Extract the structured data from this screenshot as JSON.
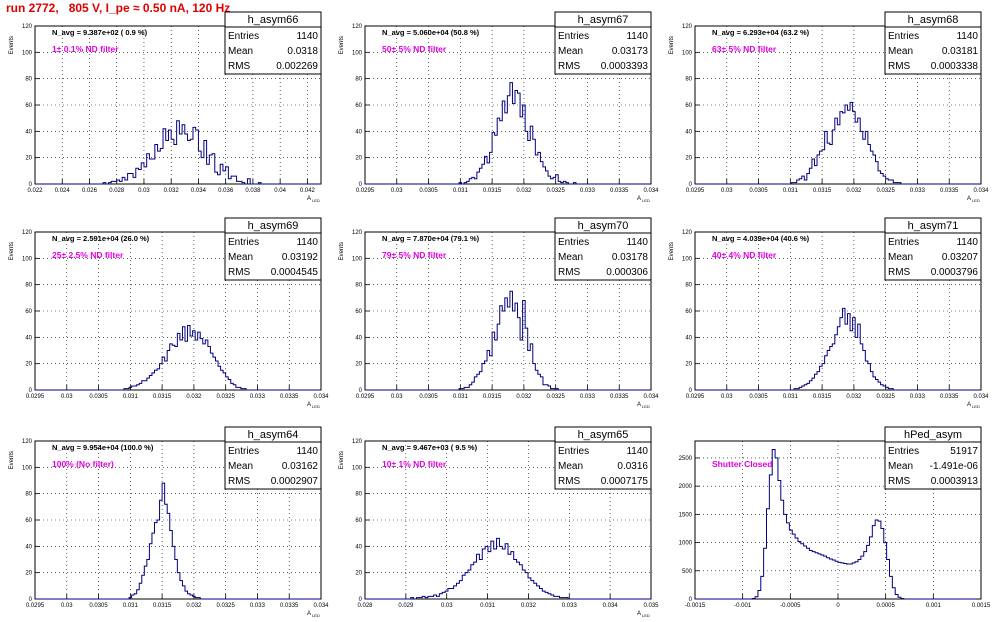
{
  "page": {
    "title": "run 2772,   805 V, I_pe ≈ 0.50 nA, 120 Hz"
  },
  "labels": {
    "entries": "Entries",
    "mean": "Mean",
    "rms": "RMS"
  },
  "colors": {
    "title": "#e00000",
    "annotation": "#e000e0",
    "histogram": "#000080",
    "grid": "#000000"
  },
  "chart_data": [
    {
      "name": "h_asym66",
      "type": "histogram",
      "nav": "N_avg = 9.387e+02 ( 0.9 %)",
      "filter": "1± 0.1% ND filter",
      "stats": {
        "entries": "1140",
        "mean": "0.0318",
        "rms": "0.002269"
      },
      "xlabel": "A_LED",
      "ylabel": "Events",
      "xlim": [
        0.022,
        0.043
      ],
      "ylim": [
        0,
        120
      ],
      "xticks": [
        0.022,
        0.024,
        0.026,
        0.028,
        0.03,
        0.032,
        0.034,
        0.036,
        0.038,
        0.04,
        0.042
      ],
      "xtick_labels": [
        "0.022",
        "0.024",
        "0.026",
        "0.028",
        "0.03",
        "0.032",
        "0.034",
        "0.036",
        "0.038",
        "0.04",
        "0.042"
      ],
      "yticks": [
        0,
        20,
        40,
        60,
        80,
        100,
        120
      ],
      "bins_lo": 0.022,
      "bin_width": 0.0002,
      "counts": [
        0,
        0,
        0,
        0,
        0,
        0,
        0,
        0,
        0,
        0,
        0,
        0,
        0,
        0,
        0,
        0,
        0,
        0,
        0,
        0,
        0,
        0,
        0,
        0,
        0,
        1,
        0,
        1,
        2,
        2,
        3,
        2,
        5,
        3,
        8,
        8,
        5,
        12,
        11,
        16,
        13,
        23,
        19,
        19,
        30,
        25,
        27,
        42,
        33,
        41,
        34,
        30,
        48,
        38,
        45,
        38,
        33,
        34,
        43,
        41,
        25,
        20,
        33,
        15,
        22,
        23,
        9,
        7,
        15,
        10,
        13,
        4,
        6,
        6,
        2,
        2,
        1,
        0,
        4,
        0,
        0,
        0,
        1,
        0,
        0,
        0,
        0,
        0,
        0,
        0,
        0,
        0,
        0,
        0,
        0,
        0,
        0,
        0,
        0,
        0,
        0,
        0,
        0,
        0,
        0
      ]
    },
    {
      "name": "h_asym67",
      "type": "histogram",
      "nav": "N_avg = 5.060e+04 (50.8 %)",
      "filter": "50± 5% ND filter",
      "stats": {
        "entries": "1140",
        "mean": "0.03173",
        "rms": "0.0003393"
      },
      "xlabel": "A_LED",
      "ylabel": "Events",
      "xlim": [
        0.0295,
        0.034
      ],
      "ylim": [
        0,
        120
      ],
      "xticks": [
        0.0295,
        0.03,
        0.0305,
        0.031,
        0.0315,
        0.032,
        0.0325,
        0.033,
        0.0335,
        0.034
      ],
      "xtick_labels": [
        "0.0295",
        "0.03",
        "0.0305",
        "0.031",
        "0.0315",
        "0.032",
        "0.0325",
        "0.033",
        "0.0335",
        "0.034"
      ],
      "yticks": [
        0,
        20,
        40,
        60,
        80,
        100,
        120
      ],
      "bins_lo": 0.0295,
      "bin_width": 4e-05,
      "counts": [
        0,
        0,
        0,
        0,
        0,
        0,
        0,
        0,
        0,
        0,
        0,
        0,
        0,
        0,
        0,
        0,
        0,
        0,
        0,
        0,
        0,
        0,
        0,
        0,
        0,
        0,
        0,
        0,
        0,
        0,
        0,
        0,
        0,
        0,
        0,
        0,
        0,
        1,
        0,
        1,
        2,
        4,
        5,
        4,
        9,
        12,
        15,
        21,
        16,
        24,
        39,
        37,
        50,
        48,
        63,
        54,
        67,
        77,
        61,
        71,
        69,
        51,
        60,
        40,
        33,
        44,
        34,
        22,
        24,
        17,
        13,
        10,
        6,
        4,
        5,
        7,
        2,
        1,
        2,
        1,
        0,
        0,
        1,
        0,
        0,
        0,
        0,
        0,
        0,
        0,
        0,
        0,
        0,
        0,
        0,
        0,
        0,
        0,
        0,
        0,
        0,
        0,
        0,
        0,
        0,
        0,
        0,
        0,
        0,
        0,
        0,
        0
      ]
    },
    {
      "name": "h_asym68",
      "type": "histogram",
      "nav": "N_avg = 6.293e+04 (63.2 %)",
      "filter": "63± 5% ND filter",
      "stats": {
        "entries": "1140",
        "mean": "0.03181",
        "rms": "0.0003338"
      },
      "xlabel": "A_LED",
      "ylabel": "Events",
      "xlim": [
        0.0295,
        0.034
      ],
      "ylim": [
        0,
        120
      ],
      "xticks": [
        0.0295,
        0.03,
        0.0305,
        0.031,
        0.0315,
        0.032,
        0.0325,
        0.033,
        0.0335,
        0.034
      ],
      "xtick_labels": [
        "0.0295",
        "0.03",
        "0.0305",
        "0.031",
        "0.0315",
        "0.032",
        "0.0325",
        "0.033",
        "0.0335",
        "0.034"
      ],
      "yticks": [
        0,
        20,
        40,
        60,
        80,
        100,
        120
      ],
      "bins_lo": 0.0295,
      "bin_width": 4e-05,
      "counts": [
        0,
        0,
        0,
        0,
        0,
        0,
        0,
        0,
        0,
        0,
        0,
        0,
        0,
        0,
        0,
        0,
        0,
        0,
        0,
        0,
        0,
        0,
        0,
        0,
        0,
        0,
        0,
        0,
        0,
        0,
        0,
        0,
        0,
        0,
        0,
        0,
        0,
        0,
        1,
        1,
        3,
        4,
        6,
        3,
        8,
        12,
        19,
        14,
        22,
        25,
        26,
        40,
        31,
        30,
        41,
        50,
        45,
        55,
        54,
        60,
        56,
        62,
        55,
        47,
        50,
        40,
        34,
        40,
        30,
        25,
        22,
        17,
        10,
        8,
        6,
        4,
        3,
        3,
        1,
        1,
        1,
        0,
        0,
        0,
        0,
        0,
        0,
        0,
        0,
        0,
        0,
        0,
        0,
        0,
        0,
        0,
        0,
        0,
        0,
        0,
        0,
        0,
        0,
        0,
        0,
        0,
        0,
        0,
        0,
        0,
        0,
        0
      ]
    },
    {
      "name": "h_asym69",
      "type": "histogram",
      "nav": "N_avg = 2.591e+04 (26.0 %)",
      "filter": "25± 2.5% ND filter",
      "stats": {
        "entries": "1140",
        "mean": "0.03192",
        "rms": "0.0004545"
      },
      "xlabel": "A_LED",
      "ylabel": "Events",
      "xlim": [
        0.0295,
        0.034
      ],
      "ylim": [
        0,
        120
      ],
      "xticks": [
        0.0295,
        0.03,
        0.0305,
        0.031,
        0.0315,
        0.032,
        0.0325,
        0.033,
        0.0335,
        0.034
      ],
      "xtick_labels": [
        "0.0295",
        "0.03",
        "0.0305",
        "0.031",
        "0.0315",
        "0.032",
        "0.0325",
        "0.033",
        "0.0335",
        "0.034"
      ],
      "yticks": [
        0,
        20,
        40,
        60,
        80,
        100,
        120
      ],
      "bins_lo": 0.0295,
      "bin_width": 4e-05,
      "counts": [
        0,
        0,
        0,
        0,
        0,
        0,
        0,
        0,
        0,
        0,
        0,
        0,
        0,
        0,
        0,
        0,
        0,
        0,
        0,
        0,
        0,
        0,
        0,
        0,
        0,
        0,
        0,
        0,
        0,
        0,
        0,
        0,
        0,
        0,
        0,
        1,
        1,
        2,
        3,
        3,
        4,
        5,
        7,
        7,
        9,
        11,
        13,
        15,
        16,
        20,
        25,
        22,
        30,
        35,
        34,
        33,
        43,
        38,
        48,
        37,
        49,
        41,
        45,
        38,
        44,
        39,
        35,
        38,
        33,
        28,
        25,
        22,
        18,
        15,
        13,
        10,
        8,
        5,
        4,
        2,
        2,
        1,
        1,
        0,
        0,
        0,
        0,
        0,
        0,
        0,
        0,
        0,
        0,
        0,
        0,
        0,
        0,
        0,
        0,
        0,
        0,
        0,
        0,
        0,
        0,
        0,
        0,
        0,
        0,
        0,
        0,
        0
      ]
    },
    {
      "name": "h_asym70",
      "type": "histogram",
      "nav": "N_avg = 7.870e+04 (79.1 %)",
      "filter": "79± 5% ND filter",
      "stats": {
        "entries": "1140",
        "mean": "0.03178",
        "rms": "0.000306"
      },
      "xlabel": "A_LED",
      "ylabel": "Events",
      "xlim": [
        0.0295,
        0.034
      ],
      "ylim": [
        0,
        120
      ],
      "xticks": [
        0.0295,
        0.03,
        0.0305,
        0.031,
        0.0315,
        0.032,
        0.0325,
        0.033,
        0.0335,
        0.034
      ],
      "xtick_labels": [
        "0.0295",
        "0.03",
        "0.0305",
        "0.031",
        "0.0315",
        "0.032",
        "0.0325",
        "0.033",
        "0.0335",
        "0.034"
      ],
      "yticks": [
        0,
        20,
        40,
        60,
        80,
        100,
        120
      ],
      "bins_lo": 0.0295,
      "bin_width": 4e-05,
      "counts": [
        0,
        0,
        0,
        0,
        0,
        0,
        0,
        0,
        0,
        0,
        0,
        0,
        0,
        0,
        0,
        0,
        0,
        0,
        0,
        0,
        0,
        0,
        0,
        0,
        0,
        0,
        0,
        0,
        0,
        0,
        0,
        0,
        0,
        0,
        0,
        0,
        0,
        1,
        1,
        2,
        2,
        4,
        6,
        10,
        12,
        14,
        20,
        22,
        30,
        26,
        44,
        38,
        50,
        64,
        60,
        70,
        63,
        75,
        60,
        66,
        55,
        38,
        68,
        47,
        30,
        35,
        20,
        15,
        12,
        10,
        4,
        4,
        3,
        1,
        1,
        1,
        0,
        0,
        0,
        0,
        0,
        0,
        0,
        0,
        0,
        0,
        0,
        0,
        0,
        0,
        0,
        0,
        0,
        0,
        0,
        0,
        0,
        0,
        0,
        0,
        0,
        0,
        0,
        0,
        0,
        0,
        0,
        0,
        0,
        0,
        0,
        0
      ]
    },
    {
      "name": "h_asym71",
      "type": "histogram",
      "nav": "N_avg = 4.039e+04 (40.6 %)",
      "filter": "40± 4% ND filter",
      "stats": {
        "entries": "1140",
        "mean": "0.03207",
        "rms": "0.0003796"
      },
      "xlabel": "A_LED",
      "ylabel": "Events",
      "xlim": [
        0.0295,
        0.034
      ],
      "ylim": [
        0,
        120
      ],
      "xticks": [
        0.0295,
        0.03,
        0.0305,
        0.031,
        0.0315,
        0.032,
        0.0325,
        0.033,
        0.0335,
        0.034
      ],
      "xtick_labels": [
        "0.0295",
        "0.03",
        "0.0305",
        "0.031",
        "0.0315",
        "0.032",
        "0.0325",
        "0.033",
        "0.0335",
        "0.034"
      ],
      "yticks": [
        0,
        20,
        40,
        60,
        80,
        100,
        120
      ],
      "bins_lo": 0.0295,
      "bin_width": 4e-05,
      "counts": [
        0,
        0,
        0,
        0,
        0,
        0,
        0,
        0,
        0,
        0,
        0,
        0,
        0,
        0,
        0,
        0,
        0,
        0,
        0,
        0,
        0,
        0,
        0,
        0,
        0,
        0,
        0,
        0,
        0,
        0,
        0,
        0,
        0,
        0,
        0,
        0,
        0,
        0,
        0,
        1,
        1,
        2,
        3,
        4,
        5,
        7,
        9,
        12,
        14,
        18,
        20,
        26,
        30,
        33,
        35,
        42,
        48,
        55,
        62,
        50,
        58,
        45,
        55,
        40,
        50,
        35,
        30,
        22,
        20,
        14,
        10,
        8,
        6,
        4,
        3,
        2,
        1,
        1,
        0,
        0,
        0,
        0,
        0,
        0,
        0,
        0,
        0,
        0,
        0,
        0,
        0,
        0,
        0,
        0,
        0,
        0,
        0,
        0,
        0,
        0,
        0,
        0,
        0,
        0,
        0,
        0,
        0,
        0,
        0,
        0,
        0,
        0
      ]
    },
    {
      "name": "h_asym64",
      "type": "histogram",
      "nav": "N_avg = 9.954e+04 (100.0 %)",
      "filter": "100% (No filter)",
      "stats": {
        "entries": "1140",
        "mean": "0.03162",
        "rms": "0.0002907"
      },
      "xlabel": "A_LED",
      "ylabel": "Events",
      "xlim": [
        0.0295,
        0.034
      ],
      "ylim": [
        0,
        120
      ],
      "xticks": [
        0.0295,
        0.03,
        0.0305,
        0.031,
        0.0315,
        0.032,
        0.0325,
        0.033,
        0.0335,
        0.034
      ],
      "xtick_labels": [
        "0.0295",
        "0.03",
        "0.0305",
        "0.031",
        "0.0315",
        "0.032",
        "0.0325",
        "0.033",
        "0.0335",
        "0.034"
      ],
      "yticks": [
        0,
        20,
        40,
        60,
        80,
        100,
        120
      ],
      "bins_lo": 0.0295,
      "bin_width": 4e-05,
      "counts": [
        0,
        0,
        0,
        0,
        0,
        0,
        0,
        0,
        0,
        0,
        0,
        0,
        0,
        0,
        0,
        0,
        0,
        0,
        0,
        0,
        0,
        0,
        0,
        0,
        0,
        0,
        0,
        0,
        0,
        0,
        0,
        0,
        0,
        0,
        0,
        0,
        0,
        1,
        3,
        4,
        7,
        12,
        18,
        25,
        30,
        42,
        50,
        58,
        60,
        75,
        88,
        72,
        65,
        52,
        40,
        30,
        20,
        14,
        10,
        6,
        4,
        3,
        2,
        1,
        1,
        0,
        0,
        0,
        0,
        0,
        0,
        0,
        0,
        0,
        0,
        0,
        0,
        0,
        0,
        0,
        0,
        0,
        0,
        0,
        0,
        0,
        0,
        0,
        0,
        0,
        0,
        0,
        0,
        0,
        0,
        0,
        0,
        0,
        0,
        0,
        0,
        0,
        0,
        0,
        0,
        0,
        0,
        0,
        0,
        0,
        0,
        0
      ]
    },
    {
      "name": "h_asym65",
      "type": "histogram",
      "nav": "N_avg = 9.467e+03 ( 9.5 %)",
      "filter": "10± 1% ND filter",
      "stats": {
        "entries": "1140",
        "mean": "0.0316",
        "rms": "0.0007175"
      },
      "xlabel": "A_LED",
      "ylabel": "Events",
      "xlim": [
        0.028,
        0.035
      ],
      "ylim": [
        0,
        120
      ],
      "xticks": [
        0.028,
        0.029,
        0.03,
        0.031,
        0.032,
        0.033,
        0.034,
        0.035
      ],
      "xtick_labels": [
        "0.028",
        "0.029",
        "0.03",
        "0.031",
        "0.032",
        "0.033",
        "0.034",
        "0.035"
      ],
      "yticks": [
        0,
        20,
        40,
        60,
        80,
        100,
        120
      ],
      "bins_lo": 0.028,
      "bin_width": 7e-05,
      "counts": [
        0,
        0,
        0,
        0,
        0,
        0,
        0,
        0,
        0,
        0,
        0,
        0,
        0,
        0,
        0,
        0,
        1,
        0,
        1,
        1,
        2,
        1,
        2,
        2,
        3,
        2,
        4,
        5,
        6,
        8,
        8,
        10,
        12,
        14,
        18,
        20,
        22,
        26,
        28,
        34,
        30,
        38,
        40,
        36,
        44,
        38,
        46,
        40,
        38,
        42,
        34,
        36,
        30,
        28,
        26,
        22,
        20,
        16,
        14,
        12,
        10,
        8,
        6,
        5,
        4,
        3,
        2,
        2,
        1,
        1,
        1,
        0,
        0,
        0,
        0,
        0,
        0,
        0,
        0,
        0,
        0,
        0,
        0,
        0,
        0,
        0,
        0,
        0,
        0,
        0,
        0,
        0,
        0,
        0,
        0,
        0,
        0,
        0,
        0,
        0
      ]
    },
    {
      "name": "hPed_asym",
      "type": "histogram",
      "nav": "",
      "filter": "Shutter Closed",
      "stats": {
        "entries": "51917",
        "mean": "-1.491e-06",
        "rms": "0.0003913"
      },
      "xlabel": "",
      "ylabel": "",
      "xlim": [
        -0.0015,
        0.0015
      ],
      "ylim": [
        0,
        2800
      ],
      "xticks": [
        -0.0015,
        -0.001,
        -0.0005,
        0,
        0.0005,
        0.001,
        0.0015
      ],
      "xtick_labels": [
        "-0.0015",
        "-0.001",
        "-0.0005",
        "0",
        "0.0005",
        "0.001",
        "0.0015"
      ],
      "yticks": [
        0,
        500,
        1000,
        1500,
        2000,
        2500
      ],
      "bins_lo": -0.0015,
      "bin_width": 3e-05,
      "counts": [
        0,
        0,
        0,
        0,
        0,
        0,
        0,
        0,
        0,
        0,
        0,
        0,
        0,
        0,
        0,
        0,
        0,
        0,
        0,
        0,
        10,
        40,
        150,
        400,
        900,
        1600,
        2200,
        2650,
        2500,
        2100,
        1750,
        1500,
        1350,
        1220,
        1150,
        1080,
        1020,
        980,
        940,
        900,
        860,
        840,
        820,
        800,
        780,
        760,
        730,
        710,
        690,
        670,
        650,
        640,
        630,
        620,
        620,
        640,
        660,
        700,
        760,
        840,
        950,
        1100,
        1300,
        1400,
        1380,
        1250,
        1000,
        700,
        400,
        200,
        80,
        30,
        10,
        0,
        0,
        0,
        0,
        0,
        0,
        0,
        0,
        0,
        0,
        0,
        0,
        0,
        0,
        0,
        0,
        0,
        0,
        0,
        0,
        0,
        0,
        0,
        0,
        0
      ]
    }
  ]
}
